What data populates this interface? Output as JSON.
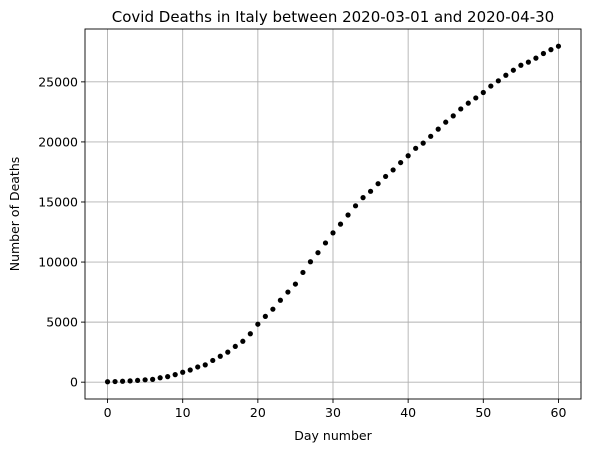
{
  "chart_data": {
    "type": "scatter",
    "title": "Covid Deaths in Italy between 2020-03-01 and 2020-04-30",
    "xlabel": "Day number",
    "ylabel": "Number of Deaths",
    "xlim": [
      -3,
      63
    ],
    "ylim": [
      -1400,
      29400
    ],
    "xticks": [
      0,
      10,
      20,
      30,
      40,
      50,
      60
    ],
    "yticks": [
      0,
      5000,
      10000,
      15000,
      20000,
      25000
    ],
    "grid": true,
    "marker_color": "#000000",
    "series": [
      {
        "x": [
          0,
          1,
          2,
          3,
          4,
          5,
          6,
          7,
          8,
          9,
          10,
          11,
          12,
          13,
          14,
          15,
          16,
          17,
          18,
          19,
          20,
          21,
          22,
          23,
          24,
          25,
          26,
          27,
          28,
          29,
          30,
          31,
          32,
          33,
          34,
          35,
          36,
          37,
          38,
          39,
          40,
          41,
          42,
          43,
          44,
          45,
          46,
          47,
          48,
          49,
          50,
          51,
          52,
          53,
          54,
          55,
          56,
          57,
          58,
          59,
          60
        ],
        "y": [
          34,
          52,
          79,
          107,
          148,
          197,
          233,
          366,
          463,
          631,
          827,
          1016,
          1266,
          1441,
          1809,
          2158,
          2503,
          2978,
          3405,
          4032,
          4825,
          5476,
          6077,
          6820,
          7503,
          8165,
          9134,
          10023,
          10779,
          11591,
          12428,
          13155,
          13915,
          14681,
          15362,
          15887,
          16523,
          17127,
          17669,
          18279,
          18849,
          19468,
          19899,
          20465,
          21067,
          21645,
          22170,
          22745,
          23227,
          23660,
          24114,
          24648,
          25085,
          25549,
          25969,
          26384,
          26644,
          26977,
          27359,
          27682,
          27967
        ]
      }
    ]
  }
}
